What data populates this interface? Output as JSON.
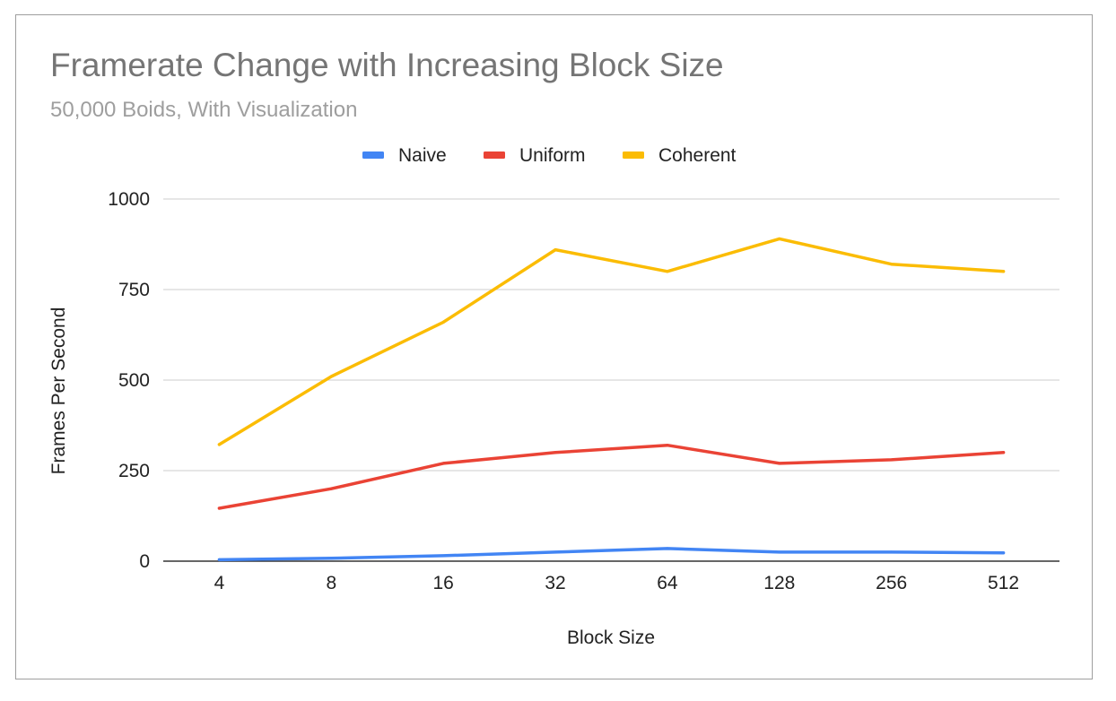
{
  "chart_data": {
    "type": "line",
    "title": "Framerate Change with Increasing Block Size",
    "subtitle": "50,000 Boids, With Visualization",
    "xlabel": "Block Size",
    "ylabel": "Frames Per Second",
    "categories": [
      "4",
      "8",
      "16",
      "32",
      "64",
      "128",
      "256",
      "512"
    ],
    "ylim": [
      0,
      1000
    ],
    "yticks": [
      0,
      250,
      500,
      750,
      1000
    ],
    "grid": true,
    "legend_position": "top",
    "series": [
      {
        "name": "Naive",
        "color": "#4285f4",
        "values": [
          4,
          8,
          15,
          25,
          35,
          25,
          25,
          23
        ]
      },
      {
        "name": "Uniform",
        "color": "#ea4335",
        "values": [
          146,
          200,
          270,
          300,
          320,
          270,
          280,
          300
        ]
      },
      {
        "name": "Coherent",
        "color": "#fbbc04",
        "values": [
          322,
          510,
          660,
          860,
          800,
          890,
          820,
          800
        ]
      }
    ]
  }
}
